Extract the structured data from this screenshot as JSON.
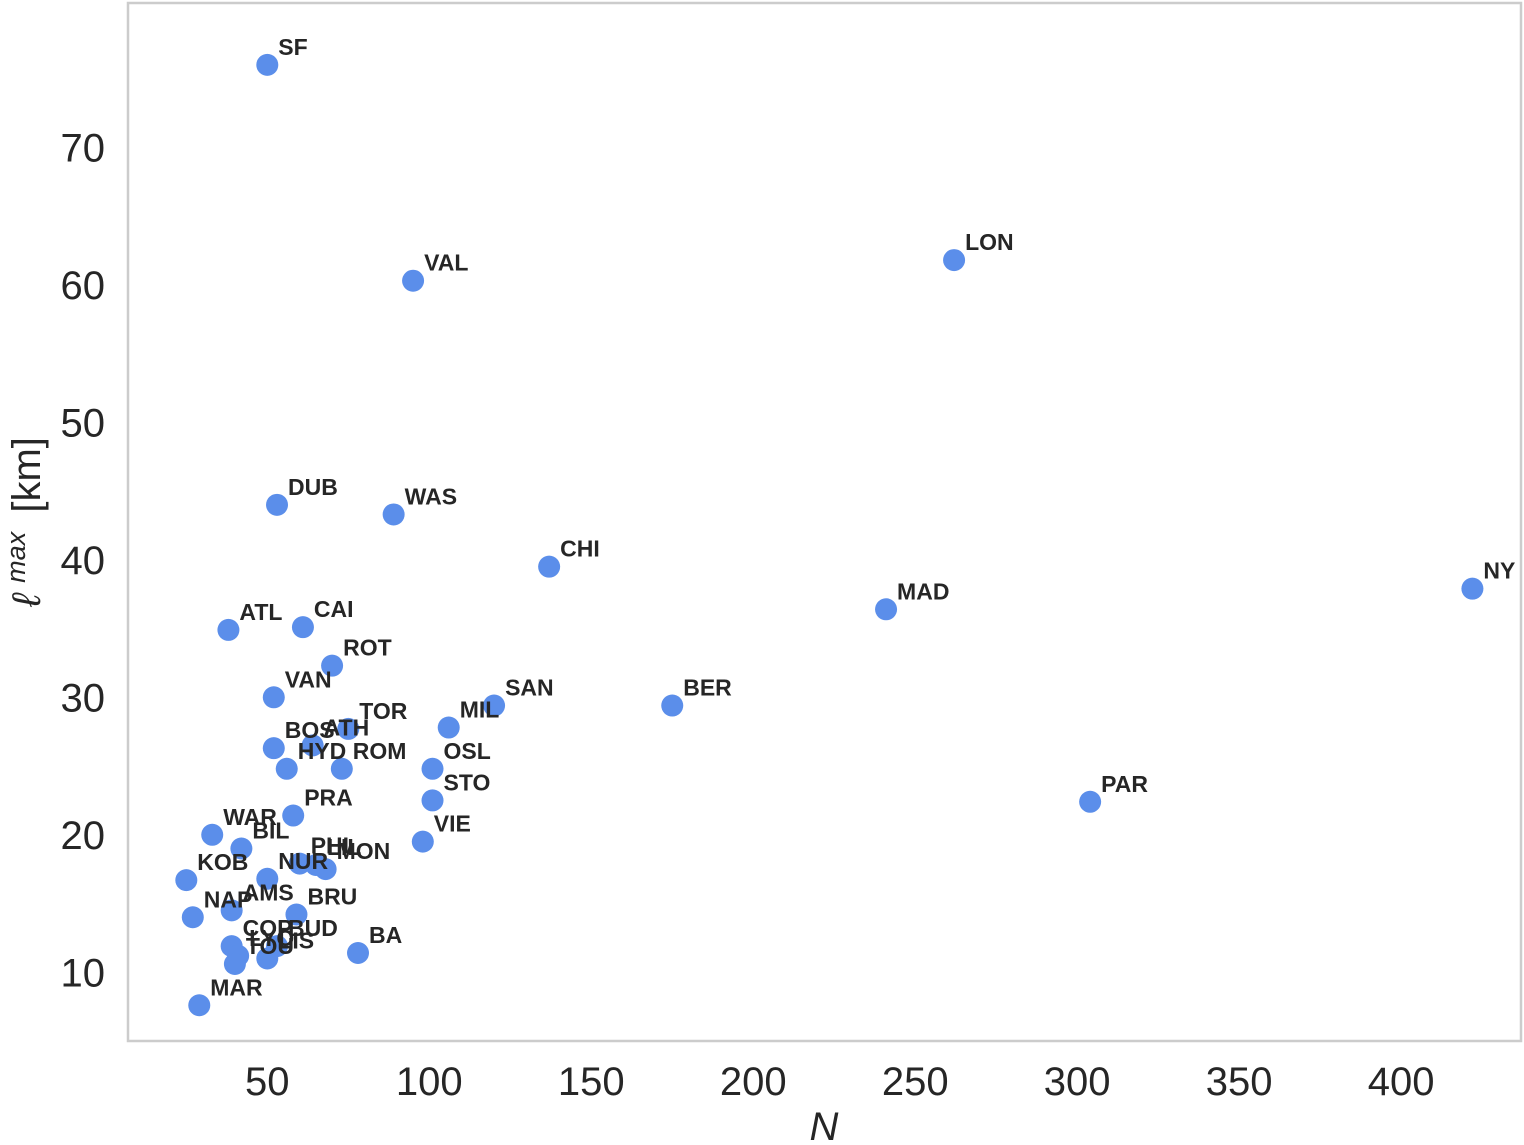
{
  "chart_data": {
    "type": "scatter",
    "title": "",
    "xlabel": "N",
    "ylabel_main": "ℓ",
    "ylabel_sup": "max",
    "ylabel_unit": "[km]",
    "xlim": [
      7,
      437
    ],
    "ylim": [
      5,
      80.5
    ],
    "xticks": [
      50,
      100,
      150,
      200,
      250,
      300,
      350,
      400
    ],
    "yticks": [
      10,
      20,
      30,
      40,
      50,
      60,
      70
    ],
    "grid": false,
    "legend": "none",
    "marker_color": "#5b8eea",
    "axes_border_color": "#cccccc",
    "points": [
      {
        "label": "SF",
        "x": 50,
        "y": 76.0
      },
      {
        "label": "VAL",
        "x": 95,
        "y": 60.3
      },
      {
        "label": "LON",
        "x": 262,
        "y": 61.8
      },
      {
        "label": "DUB",
        "x": 53,
        "y": 44.0
      },
      {
        "label": "WAS",
        "x": 89,
        "y": 43.3
      },
      {
        "label": "CHI",
        "x": 137,
        "y": 39.5
      },
      {
        "label": "NY",
        "x": 422,
        "y": 37.9
      },
      {
        "label": "MAD",
        "x": 241,
        "y": 36.4
      },
      {
        "label": "ATL",
        "x": 38,
        "y": 34.9
      },
      {
        "label": "CAI",
        "x": 61,
        "y": 35.1
      },
      {
        "label": "ROT",
        "x": 70,
        "y": 32.3
      },
      {
        "label": "VAN",
        "x": 52,
        "y": 30.0
      },
      {
        "label": "SAN",
        "x": 120,
        "y": 29.4
      },
      {
        "label": "BER",
        "x": 175,
        "y": 29.4
      },
      {
        "label": "MIL",
        "x": 106,
        "y": 27.8
      },
      {
        "label": "TOR",
        "x": 75,
        "y": 27.7
      },
      {
        "label": "ATH",
        "x": 64,
        "y": 26.5
      },
      {
        "label": "BOS",
        "x": 52,
        "y": 26.3
      },
      {
        "label": "HYD",
        "x": 56,
        "y": 24.8
      },
      {
        "label": "ROM",
        "x": 73,
        "y": 24.8
      },
      {
        "label": "OSL",
        "x": 101,
        "y": 24.8
      },
      {
        "label": "STO",
        "x": 101,
        "y": 22.5
      },
      {
        "label": "PAR",
        "x": 304,
        "y": 22.4
      },
      {
        "label": "PRA",
        "x": 58,
        "y": 21.4
      },
      {
        "label": "WAR",
        "x": 33,
        "y": 20.0
      },
      {
        "label": "VIE",
        "x": 98,
        "y": 19.5
      },
      {
        "label": "BIL",
        "x": 42,
        "y": 19.0
      },
      {
        "label": "LIL",
        "x": 65,
        "y": 17.8
      },
      {
        "label": "MON",
        "x": 68,
        "y": 17.5
      },
      {
        "label": "PHI",
        "x": 60,
        "y": 17.9
      },
      {
        "label": "NUR",
        "x": 50,
        "y": 16.8
      },
      {
        "label": "KOB",
        "x": 25,
        "y": 16.7
      },
      {
        "label": "AMS",
        "x": 39,
        "y": 14.5
      },
      {
        "label": "BRU",
        "x": 59,
        "y": 14.2
      },
      {
        "label": "NAP",
        "x": 27,
        "y": 14.0
      },
      {
        "label": "COP",
        "x": 39,
        "y": 11.9
      },
      {
        "label": "BUD",
        "x": 53,
        "y": 11.9
      },
      {
        "label": "LIS",
        "x": 50,
        "y": 11.0
      },
      {
        "label": "LYO",
        "x": 41,
        "y": 11.2
      },
      {
        "label": "BA",
        "x": 78,
        "y": 11.4
      },
      {
        "label": "TOU",
        "x": 40,
        "y": 10.6
      },
      {
        "label": "MAR",
        "x": 29,
        "y": 7.6
      }
    ]
  }
}
